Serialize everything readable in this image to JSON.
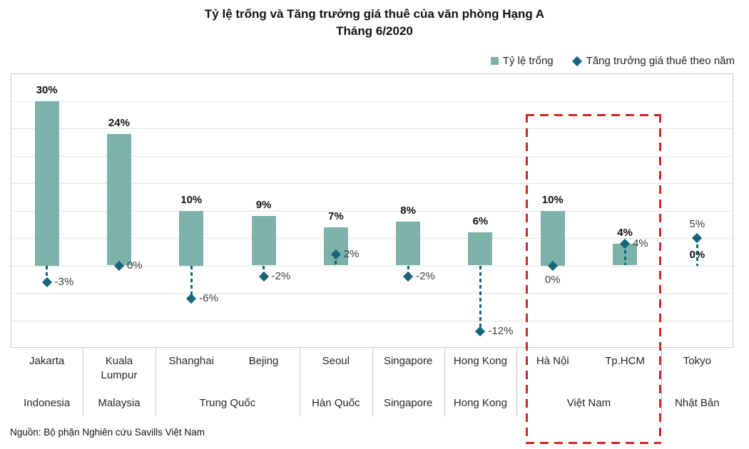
{
  "title": {
    "line1": "Tỷ lệ trống và Tăng trưởng giá thuê của văn phòng Hạng A",
    "line2": "Tháng 6/2020"
  },
  "legend": {
    "vacancy": "Tỷ lệ trống",
    "growth": "Tăng trưởng giá thuê theo năm"
  },
  "source": "Nguồn: Bộ phận Nghiên cứu Savills Việt Nam",
  "colors": {
    "bar": "#7cb3a9",
    "marker": "#17657d",
    "highlight": "#d42525",
    "grid": "#e2e2e2",
    "border": "#c9c9c9"
  },
  "chart_data": {
    "type": "bar",
    "title": "Tỷ lệ trống và Tăng trưởng giá thuê của văn phòng Hạng A",
    "subtitle": "Tháng 6/2020",
    "unit": "%",
    "ylim": [
      -15,
      35
    ],
    "grid_interval": 5,
    "grid": true,
    "legend_position": "top-right",
    "y_axis_labels_visible": false,
    "categories": [
      "Jakarta",
      "Kuala Lumpur",
      "Shanghai",
      "Bejing",
      "Seoul",
      "Singapore",
      "Hong Kong",
      "Hà Nội",
      "Tp.HCM",
      "Tokyo"
    ],
    "country_groups": [
      {
        "label": "Indonesia",
        "span": 1
      },
      {
        "label": "Malaysia",
        "span": 1
      },
      {
        "label": "Trung Quốc",
        "span": 2
      },
      {
        "label": "Hàn Quốc",
        "span": 1
      },
      {
        "label": "Singapore",
        "span": 1
      },
      {
        "label": "Hong Kong",
        "span": 1
      },
      {
        "label": "Việt Nam",
        "span": 2
      },
      {
        "label": "Nhật Bản",
        "span": 1
      }
    ],
    "series": [
      {
        "name": "Tỷ lệ trống",
        "type": "bar",
        "values": [
          30,
          24,
          10,
          9,
          7,
          8,
          6,
          10,
          4,
          0
        ]
      },
      {
        "name": "Tăng trưởng giá thuê theo năm",
        "type": "scatter",
        "values": [
          -3,
          0,
          -6,
          -2,
          2,
          -2,
          -12,
          0,
          4,
          5
        ],
        "label_positions": [
          "right",
          "right",
          "right",
          "right",
          "right",
          "right",
          "right",
          "below",
          "right",
          "above"
        ]
      }
    ],
    "highlight_box": {
      "label": "Việt Nam",
      "categories": [
        "Hà Nội",
        "Tp.HCM"
      ],
      "style": "red-dashed-box",
      "color": "#d42525"
    }
  }
}
